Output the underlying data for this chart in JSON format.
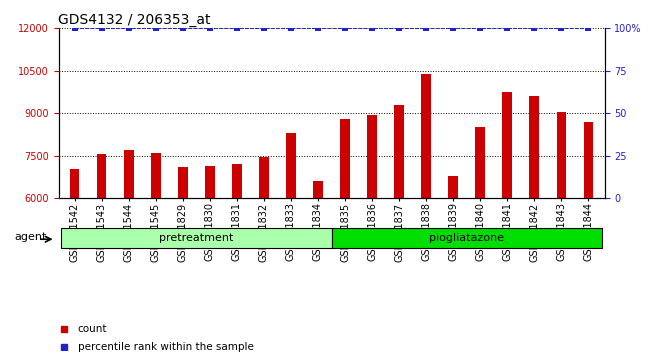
{
  "title": "GDS4132 / 206353_at",
  "categories": [
    "GSM201542",
    "GSM201543",
    "GSM201544",
    "GSM201545",
    "GSM201829",
    "GSM201830",
    "GSM201831",
    "GSM201832",
    "GSM201833",
    "GSM201834",
    "GSM201835",
    "GSM201836",
    "GSM201837",
    "GSM201838",
    "GSM201839",
    "GSM201840",
    "GSM201841",
    "GSM201842",
    "GSM201843",
    "GSM201844"
  ],
  "bar_values": [
    7050,
    7550,
    7700,
    7600,
    7100,
    7150,
    7200,
    7450,
    8300,
    6600,
    8800,
    8950,
    9300,
    10400,
    6800,
    8500,
    9750,
    9600,
    9050,
    8700
  ],
  "percentile_values": [
    100,
    100,
    100,
    100,
    100,
    100,
    100,
    100,
    100,
    100,
    100,
    100,
    100,
    100,
    100,
    100,
    100,
    100,
    100,
    100
  ],
  "bar_color": "#CC0000",
  "percentile_color": "#2222CC",
  "ylim_left": [
    6000,
    12000
  ],
  "ylim_right": [
    0,
    100
  ],
  "yticks_left": [
    6000,
    7500,
    9000,
    10500,
    12000
  ],
  "yticks_right": [
    0,
    25,
    50,
    75,
    100
  ],
  "ytick_labels_right": [
    "0",
    "25",
    "50",
    "75",
    "100%"
  ],
  "groups": [
    {
      "label": "pretreatment",
      "start": 0,
      "end": 9,
      "color": "#AAFFAA"
    },
    {
      "label": "piogliatazone",
      "start": 10,
      "end": 19,
      "color": "#00DD00"
    }
  ],
  "agent_label": "agent",
  "legend_count_label": "count",
  "legend_pct_label": "percentile rank within the sample",
  "background_color": "#FFFFFF",
  "plot_bg_color": "#FFFFFF",
  "title_fontsize": 10,
  "tick_fontsize": 7,
  "bar_width": 0.35
}
